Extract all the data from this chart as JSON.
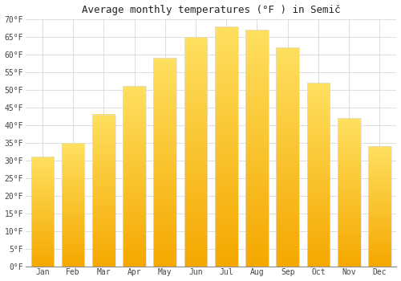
{
  "title": "Average monthly temperatures (°F ) in Semič",
  "months": [
    "Jan",
    "Feb",
    "Mar",
    "Apr",
    "May",
    "Jun",
    "Jul",
    "Aug",
    "Sep",
    "Oct",
    "Nov",
    "Dec"
  ],
  "values": [
    31,
    35,
    43,
    51,
    59,
    65,
    68,
    67,
    62,
    52,
    42,
    34
  ],
  "bar_color_bottom": "#F5A800",
  "bar_color_top": "#FFE060",
  "bar_edge_color": "#DDDDDD",
  "ylim": [
    0,
    70
  ],
  "yticks": [
    0,
    5,
    10,
    15,
    20,
    25,
    30,
    35,
    40,
    45,
    50,
    55,
    60,
    65,
    70
  ],
  "ytick_labels": [
    "0°F",
    "5°F",
    "10°F",
    "15°F",
    "20°F",
    "25°F",
    "30°F",
    "35°F",
    "40°F",
    "45°F",
    "50°F",
    "55°F",
    "60°F",
    "65°F",
    "70°F"
  ],
  "grid_color": "#d8d8d8",
  "background_color": "#ffffff",
  "title_fontsize": 9,
  "tick_fontsize": 7,
  "font_family": "monospace"
}
